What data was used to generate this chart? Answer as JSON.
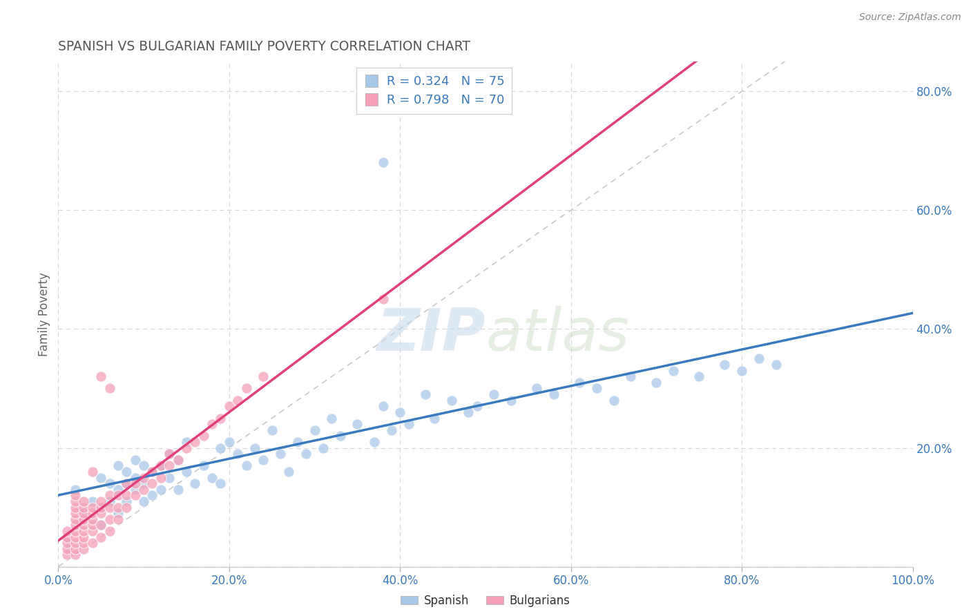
{
  "title": "SPANISH VS BULGARIAN FAMILY POVERTY CORRELATION CHART",
  "source": "Source: ZipAtlas.com",
  "ylabel": "Family Poverty",
  "xlim": [
    0,
    1.0
  ],
  "ylim": [
    0,
    0.85
  ],
  "xticks": [
    0.0,
    0.2,
    0.4,
    0.6,
    0.8,
    1.0
  ],
  "yticks": [
    0.0,
    0.2,
    0.4,
    0.6,
    0.8
  ],
  "xticklabels": [
    "0.0%",
    "20.0%",
    "40.0%",
    "60.0%",
    "80.0%",
    "100.0%"
  ],
  "yticklabels_right": [
    "",
    "20.0%",
    "40.0%",
    "60.0%",
    "80.0%"
  ],
  "spanish_R": 0.324,
  "spanish_N": 75,
  "bulgarian_R": 0.798,
  "bulgarian_N": 70,
  "spanish_color": "#a8c8e8",
  "bulgarian_color": "#f4a0b8",
  "spanish_line_color": "#3a7abf",
  "bulgarian_line_color": "#e0407a",
  "diagonal_color": "#c8c8c8",
  "background_color": "#ffffff",
  "grid_color": "#d8d8d8",
  "title_color": "#555555",
  "watermark_color": "#d0dce8",
  "legend_r_color": "#3a7abf",
  "spanish_x": [
    0.02,
    0.03,
    0.04,
    0.05,
    0.05,
    0.06,
    0.06,
    0.07,
    0.07,
    0.07,
    0.08,
    0.08,
    0.08,
    0.09,
    0.09,
    0.09,
    0.1,
    0.1,
    0.1,
    0.11,
    0.11,
    0.12,
    0.12,
    0.13,
    0.13,
    0.14,
    0.14,
    0.15,
    0.15,
    0.16,
    0.17,
    0.18,
    0.19,
    0.19,
    0.2,
    0.21,
    0.22,
    0.23,
    0.24,
    0.25,
    0.26,
    0.27,
    0.28,
    0.29,
    0.3,
    0.31,
    0.32,
    0.33,
    0.35,
    0.37,
    0.38,
    0.39,
    0.4,
    0.41,
    0.43,
    0.44,
    0.46,
    0.48,
    0.49,
    0.51,
    0.53,
    0.56,
    0.58,
    0.61,
    0.63,
    0.65,
    0.67,
    0.7,
    0.72,
    0.75,
    0.78,
    0.8,
    0.82,
    0.84,
    0.38
  ],
  "spanish_y": [
    0.13,
    0.09,
    0.11,
    0.07,
    0.15,
    0.11,
    0.14,
    0.09,
    0.13,
    0.17,
    0.11,
    0.14,
    0.16,
    0.13,
    0.15,
    0.18,
    0.11,
    0.14,
    0.17,
    0.12,
    0.16,
    0.13,
    0.17,
    0.15,
    0.19,
    0.13,
    0.18,
    0.16,
    0.21,
    0.14,
    0.17,
    0.15,
    0.2,
    0.14,
    0.21,
    0.19,
    0.17,
    0.2,
    0.18,
    0.23,
    0.19,
    0.16,
    0.21,
    0.19,
    0.23,
    0.2,
    0.25,
    0.22,
    0.24,
    0.21,
    0.27,
    0.23,
    0.26,
    0.24,
    0.29,
    0.25,
    0.28,
    0.26,
    0.27,
    0.29,
    0.28,
    0.3,
    0.29,
    0.31,
    0.3,
    0.28,
    0.32,
    0.31,
    0.33,
    0.32,
    0.34,
    0.33,
    0.35,
    0.34,
    0.68
  ],
  "bulgarian_x": [
    0.01,
    0.01,
    0.01,
    0.01,
    0.01,
    0.02,
    0.02,
    0.02,
    0.02,
    0.02,
    0.02,
    0.02,
    0.02,
    0.02,
    0.02,
    0.02,
    0.03,
    0.03,
    0.03,
    0.03,
    0.03,
    0.03,
    0.03,
    0.03,
    0.03,
    0.04,
    0.04,
    0.04,
    0.04,
    0.04,
    0.04,
    0.05,
    0.05,
    0.05,
    0.05,
    0.05,
    0.06,
    0.06,
    0.06,
    0.06,
    0.07,
    0.07,
    0.07,
    0.08,
    0.08,
    0.08,
    0.09,
    0.09,
    0.1,
    0.1,
    0.11,
    0.11,
    0.12,
    0.12,
    0.13,
    0.13,
    0.14,
    0.15,
    0.16,
    0.17,
    0.18,
    0.19,
    0.2,
    0.21,
    0.22,
    0.24,
    0.05,
    0.38,
    0.04,
    0.06
  ],
  "bulgarian_y": [
    0.02,
    0.03,
    0.04,
    0.05,
    0.06,
    0.02,
    0.03,
    0.04,
    0.05,
    0.06,
    0.07,
    0.08,
    0.09,
    0.1,
    0.11,
    0.12,
    0.03,
    0.04,
    0.05,
    0.06,
    0.07,
    0.08,
    0.09,
    0.1,
    0.11,
    0.04,
    0.06,
    0.07,
    0.08,
    0.09,
    0.1,
    0.05,
    0.07,
    0.09,
    0.1,
    0.11,
    0.06,
    0.08,
    0.1,
    0.12,
    0.08,
    0.1,
    0.12,
    0.1,
    0.12,
    0.14,
    0.12,
    0.14,
    0.13,
    0.15,
    0.14,
    0.16,
    0.15,
    0.17,
    0.17,
    0.19,
    0.18,
    0.2,
    0.21,
    0.22,
    0.24,
    0.25,
    0.27,
    0.28,
    0.3,
    0.32,
    0.32,
    0.45,
    0.16,
    0.3
  ]
}
